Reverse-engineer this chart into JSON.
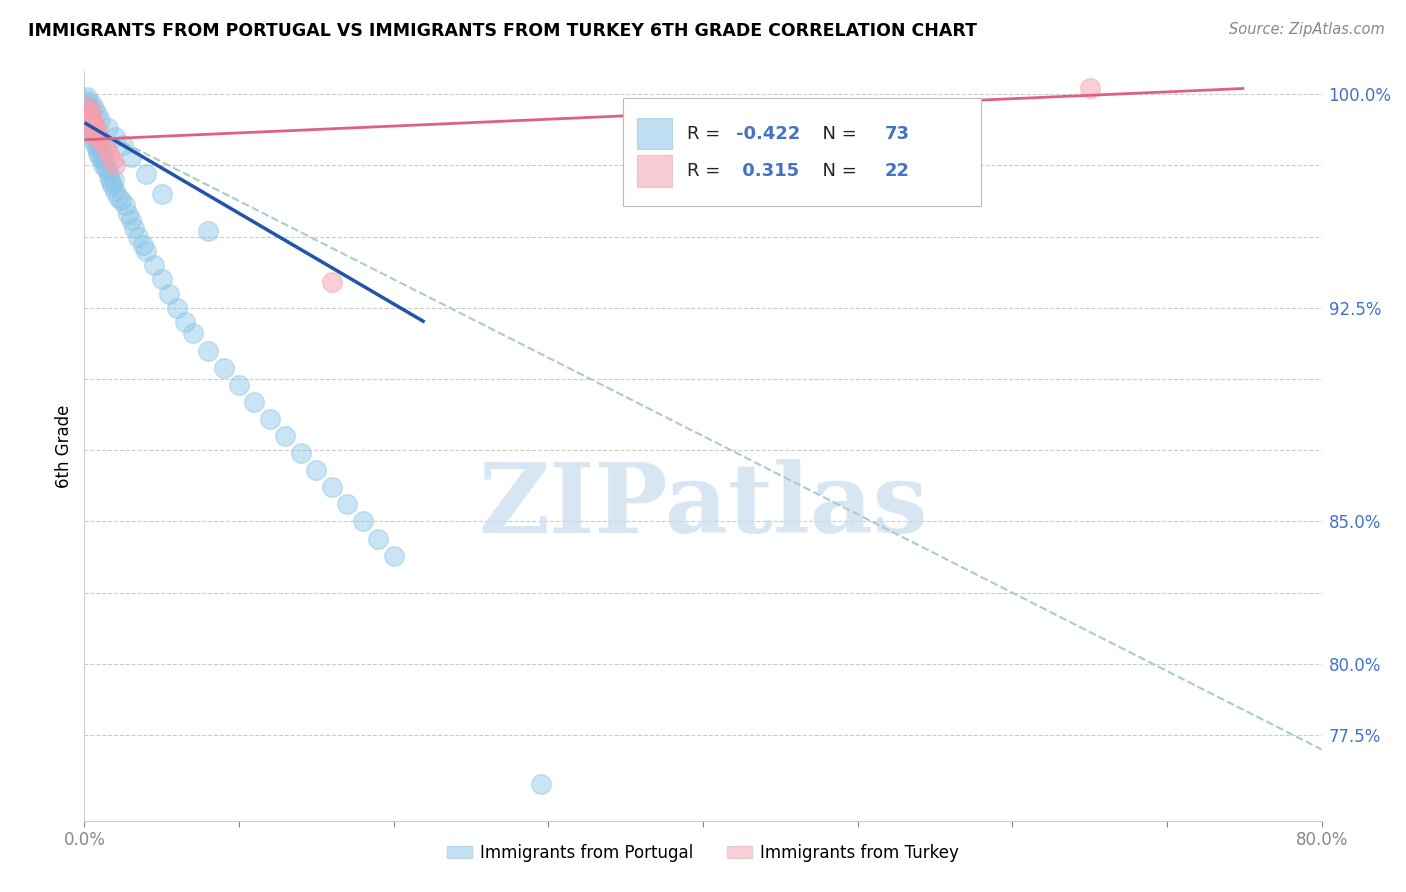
{
  "title": "IMMIGRANTS FROM PORTUGAL VS IMMIGRANTS FROM TURKEY 6TH GRADE CORRELATION CHART",
  "source": "Source: ZipAtlas.com",
  "ylabel_left": "6th Grade",
  "legend_label_blue": "Immigrants from Portugal",
  "legend_label_pink": "Immigrants from Turkey",
  "r_blue": -0.422,
  "n_blue": 73,
  "r_pink": 0.315,
  "n_pink": 22,
  "xmin": 0.0,
  "xmax": 0.8,
  "ymin": 0.745,
  "ymax": 1.008,
  "color_blue": "#89C4E8",
  "color_pink": "#F4A0B0",
  "color_trendline_blue": "#2255AA",
  "color_trendline_pink": "#E06080",
  "color_dashed": "#AACCCC",
  "watermark": "ZIPatlas",
  "watermark_color": "#C8DCF0",
  "blue_points_x": [
    0.001,
    0.002,
    0.002,
    0.003,
    0.003,
    0.003,
    0.004,
    0.004,
    0.005,
    0.005,
    0.005,
    0.006,
    0.006,
    0.007,
    0.007,
    0.008,
    0.008,
    0.009,
    0.009,
    0.01,
    0.01,
    0.011,
    0.012,
    0.012,
    0.013,
    0.014,
    0.015,
    0.016,
    0.017,
    0.018,
    0.019,
    0.02,
    0.022,
    0.024,
    0.026,
    0.028,
    0.03,
    0.032,
    0.035,
    0.038,
    0.04,
    0.045,
    0.05,
    0.055,
    0.06,
    0.065,
    0.07,
    0.08,
    0.09,
    0.1,
    0.11,
    0.12,
    0.13,
    0.14,
    0.15,
    0.16,
    0.17,
    0.18,
    0.19,
    0.2,
    0.002,
    0.004,
    0.006,
    0.008,
    0.01,
    0.015,
    0.02,
    0.025,
    0.03,
    0.04,
    0.05,
    0.08,
    0.295
  ],
  "blue_points_y": [
    0.998,
    0.996,
    0.994,
    0.995,
    0.992,
    0.99,
    0.993,
    0.988,
    0.991,
    0.989,
    0.986,
    0.987,
    0.984,
    0.986,
    0.982,
    0.985,
    0.981,
    0.983,
    0.979,
    0.982,
    0.978,
    0.98,
    0.977,
    0.975,
    0.978,
    0.974,
    0.973,
    0.971,
    0.969,
    0.968,
    0.97,
    0.966,
    0.964,
    0.963,
    0.961,
    0.958,
    0.956,
    0.953,
    0.95,
    0.947,
    0.945,
    0.94,
    0.935,
    0.93,
    0.925,
    0.92,
    0.916,
    0.91,
    0.904,
    0.898,
    0.892,
    0.886,
    0.88,
    0.874,
    0.868,
    0.862,
    0.856,
    0.85,
    0.844,
    0.838,
    0.999,
    0.997,
    0.995,
    0.993,
    0.991,
    0.988,
    0.985,
    0.982,
    0.978,
    0.972,
    0.965,
    0.952,
    0.758
  ],
  "pink_points_x": [
    0.001,
    0.002,
    0.002,
    0.003,
    0.003,
    0.004,
    0.004,
    0.005,
    0.005,
    0.006,
    0.006,
    0.007,
    0.008,
    0.009,
    0.01,
    0.012,
    0.014,
    0.016,
    0.018,
    0.02,
    0.16,
    0.65
  ],
  "pink_points_y": [
    0.996,
    0.994,
    0.993,
    0.992,
    0.99,
    0.994,
    0.989,
    0.991,
    0.988,
    0.99,
    0.986,
    0.988,
    0.985,
    0.987,
    0.984,
    0.983,
    0.981,
    0.979,
    0.977,
    0.975,
    0.934,
    1.002
  ],
  "trendline_blue_x0": 0.0,
  "trendline_blue_x1": 0.22,
  "trendline_blue_y0": 0.99,
  "trendline_blue_y1": 0.92,
  "trendline_dashed_x0": 0.0,
  "trendline_dashed_x1": 0.8,
  "trendline_dashed_y0": 0.99,
  "trendline_dashed_y1": 0.77,
  "trendline_pink_x0": 0.0,
  "trendline_pink_x1": 0.75,
  "trendline_pink_y0": 0.984,
  "trendline_pink_y1": 1.002,
  "ytick_positions": [
    0.775,
    0.8,
    0.825,
    0.85,
    0.875,
    0.9,
    0.925,
    0.95,
    0.975,
    1.0
  ],
  "ytick_labels_right": [
    "77.5%",
    "80.0%",
    "",
    "85.0%",
    "",
    "",
    "92.5%",
    "",
    "",
    "100.0%"
  ]
}
